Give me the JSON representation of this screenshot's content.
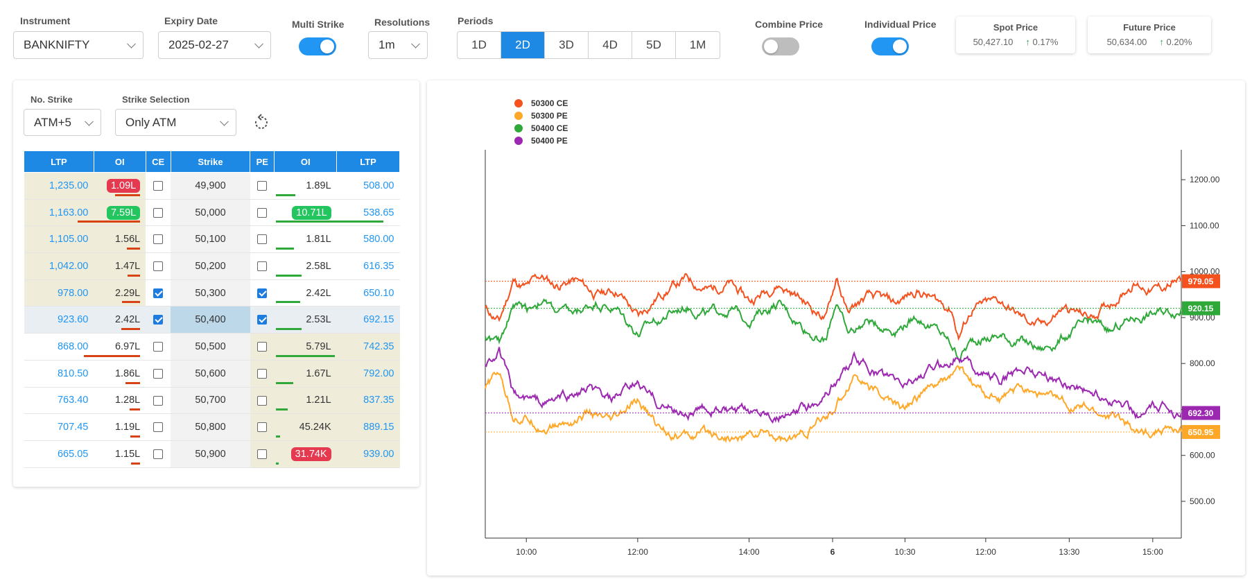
{
  "controls": {
    "instrument": {
      "label": "Instrument",
      "value": "BANKNIFTY"
    },
    "expiry": {
      "label": "Expiry Date",
      "value": "2025-02-27"
    },
    "multi_strike": {
      "label": "Multi Strike",
      "on": true
    },
    "resolution": {
      "label": "Resolutions",
      "value": "1m"
    },
    "periods": {
      "label": "Periods",
      "options": [
        "1D",
        "2D",
        "3D",
        "4D",
        "5D",
        "1M"
      ],
      "active": "2D"
    },
    "combine_price": {
      "label": "Combine Price",
      "on": false
    },
    "individual_price": {
      "label": "Individual Price",
      "on": true
    }
  },
  "spot": {
    "title": "Spot Price",
    "value": "50,427.10",
    "change": "0.17%"
  },
  "future": {
    "title": "Future Price",
    "value": "50,634.00",
    "change": "0.20%"
  },
  "panel": {
    "no_strike": {
      "label": "No. Strike",
      "value": "ATM+5"
    },
    "strike_selection": {
      "label": "Strike Selection",
      "value": "Only ATM"
    },
    "refresh_icon": "refresh-icon"
  },
  "table": {
    "headers": [
      "LTP",
      "OI",
      "CE",
      "Strike",
      "PE",
      "OI",
      "LTP"
    ],
    "rows": [
      {
        "ce_ltp": "1,235.00",
        "ce_oi": "1.09L",
        "ce_oi_pill": "red",
        "ce_bar": 0.3,
        "ce_checked": false,
        "strike": "49,900",
        "pe_checked": false,
        "pe_oi": "1.89L",
        "pe_oi_pill": "",
        "pe_bar": 0.18,
        "pe_ltp": "508.00",
        "ce_itm": true,
        "pe_itm": false
      },
      {
        "ce_ltp": "1,163.00",
        "ce_oi": "7.59L",
        "ce_oi_pill": "green",
        "ce_bar": 0.75,
        "ce_checked": false,
        "strike": "50,000",
        "pe_checked": false,
        "pe_oi": "10.71L",
        "pe_oi_pill": "green",
        "pe_bar": 1.0,
        "pe_ltp": "538.65",
        "ce_itm": true,
        "pe_itm": false
      },
      {
        "ce_ltp": "1,105.00",
        "ce_oi": "1.56L",
        "ce_oi_pill": "",
        "ce_bar": 0.16,
        "ce_checked": false,
        "strike": "50,100",
        "pe_checked": false,
        "pe_oi": "1.81L",
        "pe_oi_pill": "",
        "pe_bar": 0.17,
        "pe_ltp": "580.00",
        "ce_itm": true,
        "pe_itm": false
      },
      {
        "ce_ltp": "1,042.00",
        "ce_oi": "1.47L",
        "ce_oi_pill": "",
        "ce_bar": 0.15,
        "ce_checked": false,
        "strike": "50,200",
        "pe_checked": false,
        "pe_oi": "2.58L",
        "pe_oi_pill": "",
        "pe_bar": 0.24,
        "pe_ltp": "616.35",
        "ce_itm": true,
        "pe_itm": false
      },
      {
        "ce_ltp": "978.00",
        "ce_oi": "2.29L",
        "ce_oi_pill": "",
        "ce_bar": 0.22,
        "ce_checked": true,
        "strike": "50,300",
        "pe_checked": true,
        "pe_oi": "2.42L",
        "pe_oi_pill": "",
        "pe_bar": 0.23,
        "pe_ltp": "650.10",
        "ce_itm": true,
        "pe_itm": false
      },
      {
        "ce_ltp": "923.60",
        "ce_oi": "2.42L",
        "ce_oi_pill": "",
        "ce_bar": 0.23,
        "ce_checked": true,
        "strike": "50,400",
        "pe_checked": true,
        "pe_oi": "2.53L",
        "pe_oi_pill": "",
        "pe_bar": 0.24,
        "pe_ltp": "692.15",
        "ce_itm": false,
        "pe_itm": false,
        "selected": true
      },
      {
        "ce_ltp": "868.00",
        "ce_oi": "6.97L",
        "ce_oi_pill": "",
        "ce_bar": 0.68,
        "ce_checked": false,
        "strike": "50,500",
        "pe_checked": false,
        "pe_oi": "5.79L",
        "pe_oi_pill": "",
        "pe_bar": 0.55,
        "pe_ltp": "742.35",
        "ce_itm": false,
        "pe_itm": true
      },
      {
        "ce_ltp": "810.50",
        "ce_oi": "1.86L",
        "ce_oi_pill": "",
        "ce_bar": 0.18,
        "ce_checked": false,
        "strike": "50,600",
        "pe_checked": false,
        "pe_oi": "1.67L",
        "pe_oi_pill": "",
        "pe_bar": 0.16,
        "pe_ltp": "792.00",
        "ce_itm": false,
        "pe_itm": true
      },
      {
        "ce_ltp": "763.40",
        "ce_oi": "1.28L",
        "ce_oi_pill": "",
        "ce_bar": 0.13,
        "ce_checked": false,
        "strike": "50,700",
        "pe_checked": false,
        "pe_oi": "1.21L",
        "pe_oi_pill": "",
        "pe_bar": 0.11,
        "pe_ltp": "837.35",
        "ce_itm": false,
        "pe_itm": true
      },
      {
        "ce_ltp": "707.45",
        "ce_oi": "1.19L",
        "ce_oi_pill": "",
        "ce_bar": 0.12,
        "ce_checked": false,
        "strike": "50,800",
        "pe_checked": false,
        "pe_oi": "45.24K",
        "pe_oi_pill": "",
        "pe_bar": 0.04,
        "pe_ltp": "889.15",
        "ce_itm": false,
        "pe_itm": true
      },
      {
        "ce_ltp": "665.05",
        "ce_oi": "1.15L",
        "ce_oi_pill": "",
        "ce_bar": 0.11,
        "ce_checked": false,
        "strike": "50,900",
        "pe_checked": false,
        "pe_oi": "31.74K",
        "pe_oi_pill": "red",
        "pe_bar": 0.03,
        "pe_ltp": "939.00",
        "ce_itm": false,
        "pe_itm": true
      }
    ]
  },
  "chart_data": {
    "type": "line",
    "ylim": [
      420,
      1250
    ],
    "y_ticks": [
      "1200.00",
      "1100.00",
      "1000.00",
      "900.00",
      "800.00",
      "700.00",
      "600.00",
      "500.00"
    ],
    "y_tick_values": [
      1200,
      1100,
      1000,
      900,
      800,
      700,
      600,
      500
    ],
    "x_ticks": [
      "10:00",
      "12:00",
      "14:00",
      "6",
      "10:30",
      "12:00",
      "13:30",
      "15:00"
    ],
    "x_tick_pos": [
      0.059,
      0.219,
      0.379,
      0.499,
      0.603,
      0.719,
      0.839,
      0.959
    ],
    "series": [
      {
        "name": "50300 CE",
        "color": "#f4511e",
        "last": 979.05,
        "last_label": "979.05",
        "anchors": [
          [
            0,
            920
          ],
          [
            0.02,
            890
          ],
          [
            0.04,
            980
          ],
          [
            0.06,
            965
          ],
          [
            0.08,
            990
          ],
          [
            0.1,
            970
          ],
          [
            0.13,
            980
          ],
          [
            0.16,
            950
          ],
          [
            0.19,
            960
          ],
          [
            0.22,
            900
          ],
          [
            0.25,
            950
          ],
          [
            0.29,
            985
          ],
          [
            0.32,
            960
          ],
          [
            0.35,
            975
          ],
          [
            0.38,
            935
          ],
          [
            0.42,
            975
          ],
          [
            0.45,
            945
          ],
          [
            0.47,
            920
          ],
          [
            0.49,
            900
          ],
          [
            0.505,
            990
          ],
          [
            0.52,
            910
          ],
          [
            0.55,
            945
          ],
          [
            0.59,
            930
          ],
          [
            0.62,
            960
          ],
          [
            0.65,
            935
          ],
          [
            0.67,
            920
          ],
          [
            0.68,
            860
          ],
          [
            0.7,
            920
          ],
          [
            0.74,
            935
          ],
          [
            0.77,
            900
          ],
          [
            0.8,
            880
          ],
          [
            0.83,
            920
          ],
          [
            0.87,
            900
          ],
          [
            0.9,
            935
          ],
          [
            0.93,
            975
          ],
          [
            0.96,
            960
          ],
          [
            1.0,
            979.05
          ]
        ]
      },
      {
        "name": "50300 PE",
        "color": "#ffa726",
        "last": 650.95,
        "last_label": "650.95",
        "anchors": [
          [
            0,
            745
          ],
          [
            0.02,
            780
          ],
          [
            0.04,
            690
          ],
          [
            0.06,
            680
          ],
          [
            0.09,
            660
          ],
          [
            0.12,
            670
          ],
          [
            0.15,
            690
          ],
          [
            0.18,
            665
          ],
          [
            0.22,
            715
          ],
          [
            0.25,
            660
          ],
          [
            0.29,
            640
          ],
          [
            0.33,
            650
          ],
          [
            0.36,
            635
          ],
          [
            0.4,
            650
          ],
          [
            0.44,
            630
          ],
          [
            0.47,
            660
          ],
          [
            0.49,
            680
          ],
          [
            0.51,
            720
          ],
          [
            0.53,
            780
          ],
          [
            0.56,
            740
          ],
          [
            0.6,
            700
          ],
          [
            0.63,
            740
          ],
          [
            0.66,
            760
          ],
          [
            0.68,
            790
          ],
          [
            0.71,
            740
          ],
          [
            0.74,
            720
          ],
          [
            0.78,
            750
          ],
          [
            0.81,
            725
          ],
          [
            0.85,
            710
          ],
          [
            0.88,
            690
          ],
          [
            0.91,
            680
          ],
          [
            0.94,
            645
          ],
          [
            0.97,
            660
          ],
          [
            1.0,
            650.95
          ]
        ]
      },
      {
        "name": "50400 CE",
        "color": "#2ea838",
        "last": 920.15,
        "last_label": "920.15",
        "anchors": [
          [
            0,
            860
          ],
          [
            0.02,
            840
          ],
          [
            0.04,
            930
          ],
          [
            0.06,
            920
          ],
          [
            0.08,
            940
          ],
          [
            0.1,
            915
          ],
          [
            0.13,
            905
          ],
          [
            0.16,
            935
          ],
          [
            0.19,
            915
          ],
          [
            0.22,
            865
          ],
          [
            0.25,
            900
          ],
          [
            0.29,
            925
          ],
          [
            0.32,
            905
          ],
          [
            0.35,
            920
          ],
          [
            0.38,
            900
          ],
          [
            0.42,
            930
          ],
          [
            0.45,
            890
          ],
          [
            0.47,
            865
          ],
          [
            0.49,
            850
          ],
          [
            0.505,
            940
          ],
          [
            0.52,
            860
          ],
          [
            0.55,
            895
          ],
          [
            0.59,
            875
          ],
          [
            0.62,
            905
          ],
          [
            0.65,
            870
          ],
          [
            0.67,
            840
          ],
          [
            0.68,
            820
          ],
          [
            0.7,
            850
          ],
          [
            0.74,
            860
          ],
          [
            0.77,
            845
          ],
          [
            0.8,
            830
          ],
          [
            0.83,
            860
          ],
          [
            0.87,
            890
          ],
          [
            0.9,
            870
          ],
          [
            0.93,
            900
          ],
          [
            0.96,
            910
          ],
          [
            1.0,
            920.15
          ]
        ]
      },
      {
        "name": "50400 PE",
        "color": "#9c27b0",
        "last": 692.3,
        "last_label": "692.30",
        "anchors": [
          [
            0,
            800
          ],
          [
            0.02,
            830
          ],
          [
            0.04,
            730
          ],
          [
            0.06,
            720
          ],
          [
            0.09,
            715
          ],
          [
            0.12,
            730
          ],
          [
            0.15,
            740
          ],
          [
            0.18,
            715
          ],
          [
            0.22,
            755
          ],
          [
            0.25,
            710
          ],
          [
            0.29,
            690
          ],
          [
            0.33,
            705
          ],
          [
            0.36,
            685
          ],
          [
            0.4,
            700
          ],
          [
            0.44,
            685
          ],
          [
            0.47,
            710
          ],
          [
            0.49,
            740
          ],
          [
            0.51,
            770
          ],
          [
            0.53,
            810
          ],
          [
            0.56,
            780
          ],
          [
            0.6,
            750
          ],
          [
            0.63,
            780
          ],
          [
            0.66,
            795
          ],
          [
            0.68,
            825
          ],
          [
            0.71,
            780
          ],
          [
            0.74,
            765
          ],
          [
            0.78,
            790
          ],
          [
            0.81,
            770
          ],
          [
            0.85,
            750
          ],
          [
            0.88,
            730
          ],
          [
            0.91,
            715
          ],
          [
            0.94,
            690
          ],
          [
            0.97,
            705
          ],
          [
            1.0,
            692.3
          ]
        ]
      }
    ]
  }
}
